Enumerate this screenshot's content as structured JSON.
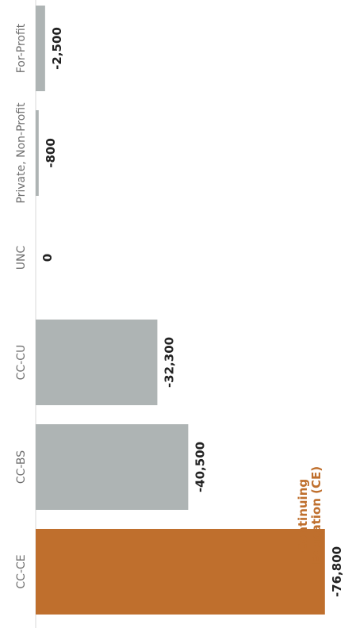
{
  "chart_data": {
    "type": "bar",
    "orientation": "horizontal",
    "categories": [
      "CC-CE",
      "CC-BS",
      "CC-CU",
      "UNC",
      "Private, Non-Profit",
      "For-Profit"
    ],
    "values": [
      -76800,
      -40500,
      -32300,
      0,
      -800,
      -2500
    ],
    "value_labels": [
      "-76,800",
      "-40,500",
      "-32,300",
      "0",
      "-800",
      "-2,500"
    ],
    "colors": [
      "#bf6f2d",
      "#aeb4b4",
      "#aeb4b4",
      "#aeb4b4",
      "#aeb4b4",
      "#aeb4b4"
    ],
    "annotation": {
      "lines": [
        "Continuing",
        "Education (CE)"
      ],
      "color": "#bf6f2d"
    },
    "title": "",
    "xlabel": "",
    "ylabel": "",
    "xlim": [
      -80000,
      0
    ],
    "grid": false,
    "legend": "none"
  }
}
